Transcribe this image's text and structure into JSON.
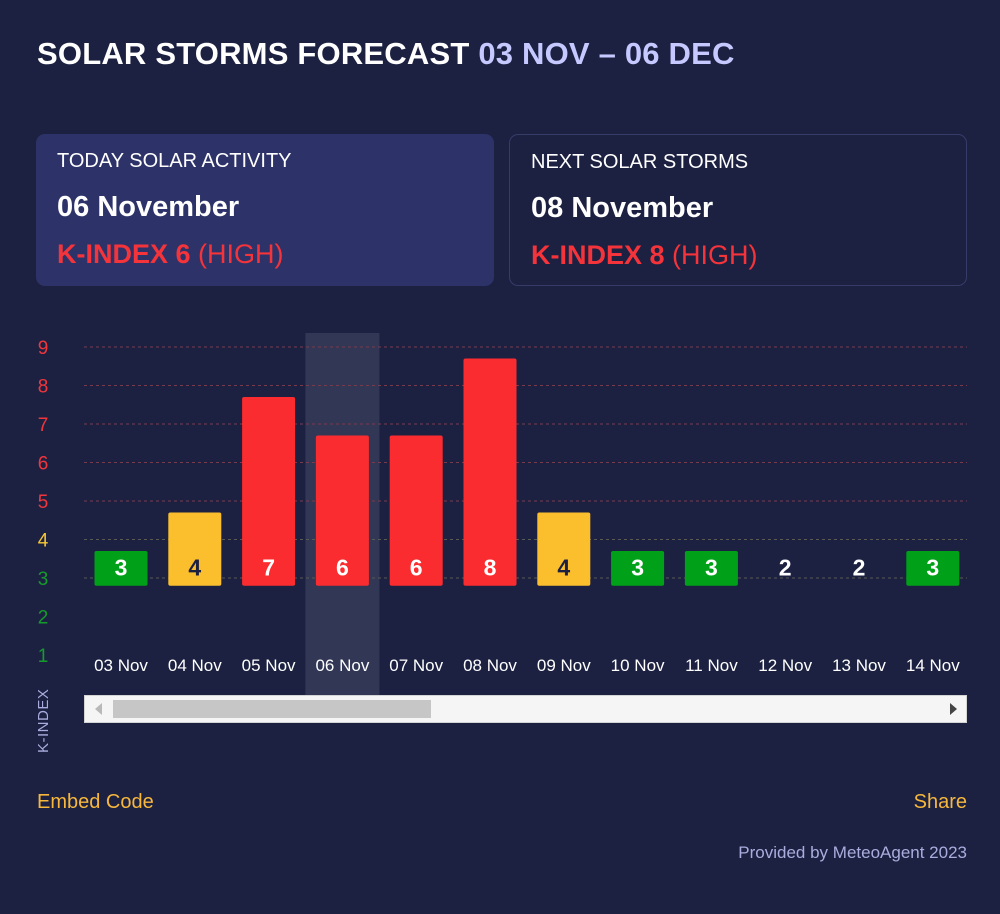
{
  "header": {
    "title": "SOLAR STORMS FORECAST",
    "range": "03 NOV – 06 DEC"
  },
  "today": {
    "label": "TODAY SOLAR ACTIVITY",
    "date": "06 November",
    "k_label": "K-INDEX 6",
    "level": "(HIGH)"
  },
  "next": {
    "label": "NEXT SOLAR STORMS",
    "date": "08 November",
    "k_label": "K-INDEX 8",
    "level": "(HIGH)"
  },
  "footer": {
    "embed_label": "Embed Code",
    "share_label": "Share",
    "provided": "Provided by MeteoAgent 2023"
  },
  "colors": {
    "low": "#00a118",
    "moderate": "#fbbf2e",
    "high": "#fb2c2f",
    "highlight": "#3a3f5e",
    "grid": "#7a3a4c",
    "tick_low": "#159b2c",
    "tick_moderate": "#f6c634",
    "tick_high": "#f0363b"
  },
  "chart_data": {
    "type": "bar",
    "title": "",
    "xlabel": "",
    "ylabel": "K-INDEX",
    "ylim": [
      1,
      9
    ],
    "yticks": [
      1,
      2,
      3,
      4,
      5,
      6,
      7,
      8,
      9
    ],
    "categories": [
      "03 Nov",
      "04 Nov",
      "05 Nov",
      "06 Nov",
      "07 Nov",
      "08 Nov",
      "09 Nov",
      "10 Nov",
      "11 Nov",
      "12 Nov",
      "13 Nov",
      "14 Nov"
    ],
    "values": [
      3,
      4,
      7,
      6,
      6,
      8,
      4,
      3,
      3,
      2,
      2,
      3
    ],
    "levels": [
      "low",
      "moderate",
      "high",
      "high",
      "high",
      "high",
      "moderate",
      "low",
      "low",
      "low",
      "low",
      "low"
    ],
    "highlighted_category": "06 Nov",
    "grid": true
  }
}
